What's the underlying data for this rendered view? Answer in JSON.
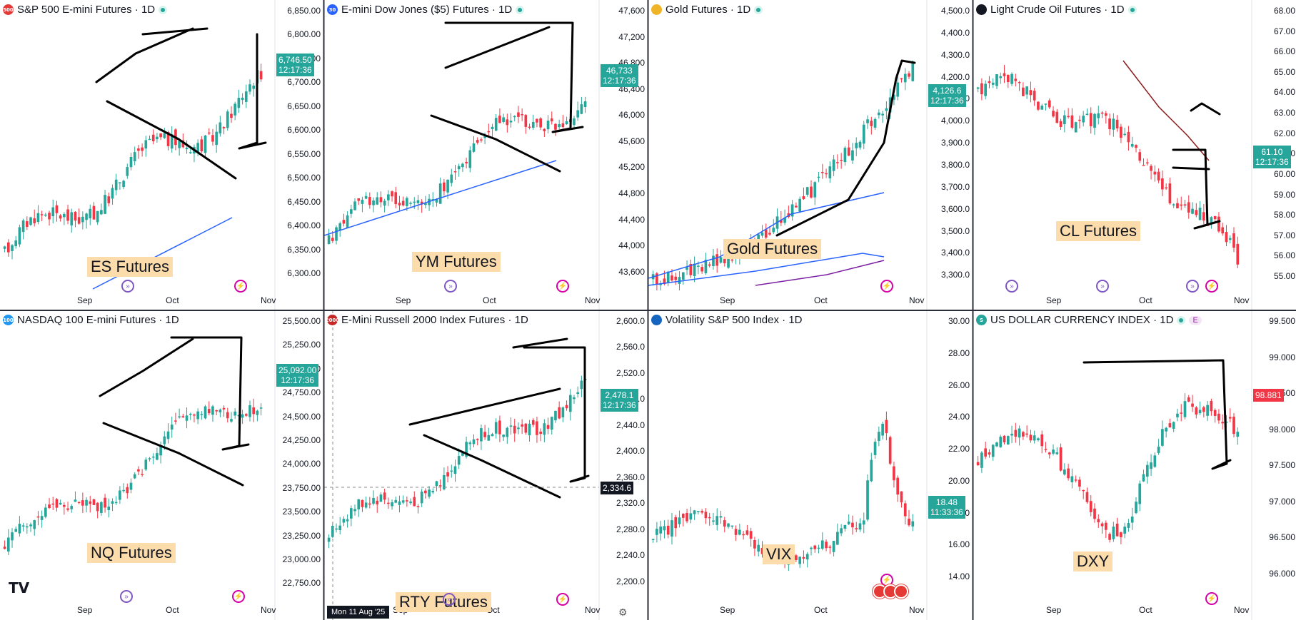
{
  "panes": [
    {
      "title": "S&P 500 E-mini Futures · 1D",
      "icon": "500",
      "icon_color": "#e53935",
      "live": true,
      "yticks": [
        "6,850.00",
        "6,800.00",
        "6,750.00",
        "6,700.00",
        "6,650.00",
        "6,600.00",
        "6,550.00",
        "6,500.00",
        "6,450.00",
        "6,400.00",
        "6,350.00",
        "6,300.00"
      ],
      "price": "6,746.50",
      "time": "12:17:36",
      "label": "ES Futures",
      "xticks": [
        "Sep",
        "Oct",
        "Nov"
      ]
    },
    {
      "title": "E-mini Dow Jones ($5) Futures · 1D",
      "icon": "30",
      "icon_color": "#2962ff",
      "live": true,
      "yticks": [
        "47,600",
        "47,200",
        "46,800",
        "46,400",
        "46,000",
        "45,600",
        "45,200",
        "44,800",
        "44,400",
        "44,000",
        "43,600"
      ],
      "price": "46,733",
      "time": "12:17:36",
      "label": "YM Futures",
      "xticks": [
        "Sep",
        "Oct",
        "Nov"
      ]
    },
    {
      "title": "Gold Futures · 1D",
      "icon": "gold-bars-icon",
      "icon_color": "#f0b429",
      "live": true,
      "yticks": [
        "4,500.0",
        "4,400.0",
        "4,300.0",
        "4,200.0",
        "4,100.0",
        "4,000.0",
        "3,900.0",
        "3,800.0",
        "3,700.0",
        "3,600.0",
        "3,500.0",
        "3,400.0",
        "3,300.0"
      ],
      "price": "4,126.6",
      "time": "12:17:36",
      "label": "Gold Futures",
      "xticks": [
        "Sep",
        "Oct",
        "Nov"
      ]
    },
    {
      "title": "Light Crude Oil Futures · 1D",
      "icon": "oil-drop-icon",
      "icon_color": "#131722",
      "live": true,
      "yticks": [
        "68.00",
        "67.00",
        "66.00",
        "65.00",
        "64.00",
        "63.00",
        "62.00",
        "61.00",
        "60.00",
        "59.00",
        "58.00",
        "57.00",
        "56.00",
        "55.00"
      ],
      "price": "61.10",
      "time": "12:17:36",
      "label": "CL Futures",
      "xticks": [
        "Sep",
        "Oct",
        "Nov"
      ]
    },
    {
      "title": "NASDAQ 100 E-mini Futures · 1D",
      "icon": "100",
      "icon_color": "#2196f3",
      "live": false,
      "yticks": [
        "25,500.00",
        "25,250.00",
        "25,000.00",
        "24,750.00",
        "24,500.00",
        "24,250.00",
        "24,000.00",
        "23,750.00",
        "23,500.00",
        "23,250.00",
        "23,000.00",
        "22,750.00"
      ],
      "price": "25,092.00",
      "time": "12:17:36",
      "label": "NQ Futures",
      "xticks": [
        "Sep",
        "Oct",
        "Nov"
      ]
    },
    {
      "title": "E-Mini Russell 2000 Index Futures · 1D",
      "icon": "2000",
      "icon_color": "#c62828",
      "live": false,
      "yticks": [
        "2,600.0",
        "2,560.0",
        "2,520.0",
        "2,480.0",
        "2,440.0",
        "2,400.0",
        "2,360.0",
        "2,320.0",
        "2,280.0",
        "2,240.0",
        "2,200.0"
      ],
      "price": "2,478.1",
      "time": "12:17:36",
      "crosshair_price": "2,334.6",
      "label": "RTY Futures",
      "xticks": [
        "Sep",
        "Oct",
        "Nov"
      ],
      "date_label": "Mon 11 Aug '25"
    },
    {
      "title": "Volatility S&P 500 Index · 1D",
      "icon": "flag-us-icon",
      "icon_color": "#1565c0",
      "live": false,
      "yticks": [
        "30.00",
        "28.00",
        "26.00",
        "24.00",
        "22.00",
        "20.00",
        "18.00",
        "16.00",
        "14.00"
      ],
      "price": "18.48",
      "time": "11:33:36",
      "label": "VIX",
      "xticks": [
        "Sep",
        "Oct",
        "Nov"
      ]
    },
    {
      "title": "US DOLLAR CURRENCY INDEX · 1D",
      "icon": "S",
      "icon_color": "#26a69a",
      "live": true,
      "badge": "E",
      "yticks": [
        "99.500",
        "99.000",
        "98.500",
        "98.000",
        "97.500",
        "97.000",
        "96.500",
        "96.000"
      ],
      "price": "98.881",
      "time": "",
      "label": "DXY",
      "xticks": [
        "Sep",
        "Oct",
        "Nov"
      ]
    }
  ],
  "logo": "TV",
  "colors": {
    "up": "#26a69a",
    "down": "#f23645",
    "ma": "#2962ff",
    "label_bg": "#fddcab"
  }
}
